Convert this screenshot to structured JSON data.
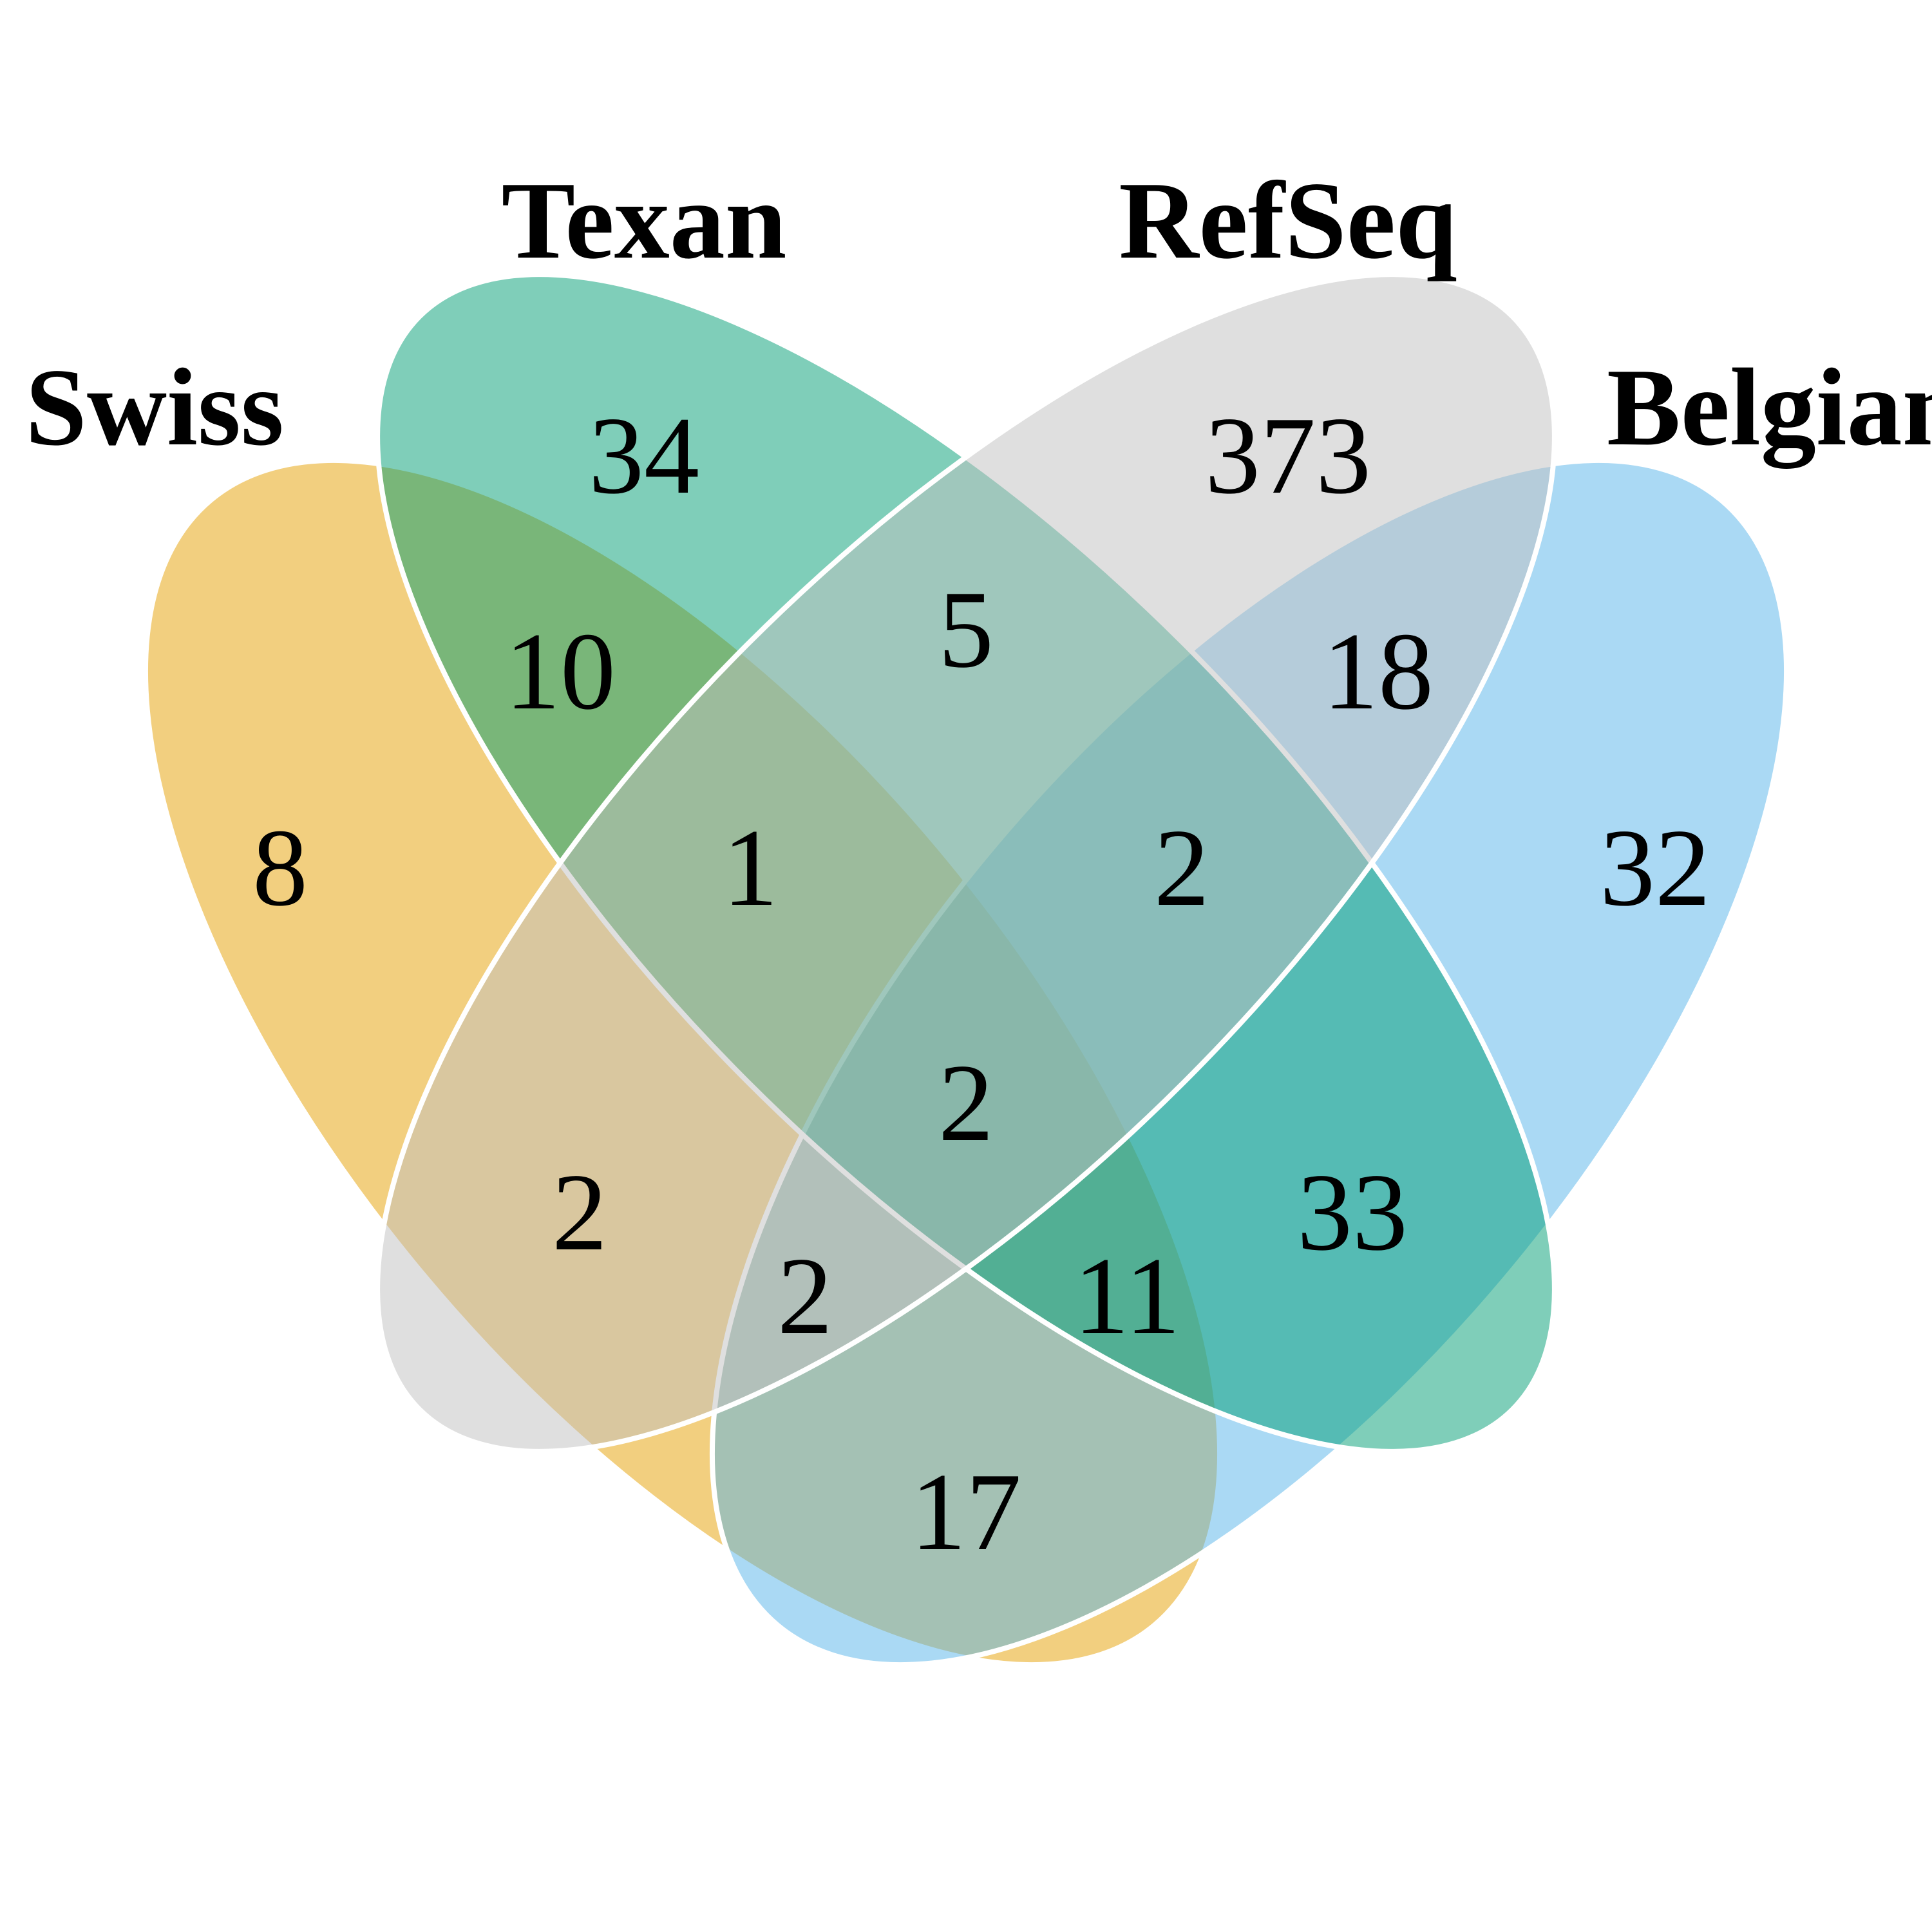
{
  "sets": {
    "swiss": {
      "label": "Swiss",
      "color": "#E69F00"
    },
    "texan": {
      "label": "Texan",
      "color": "#009E73"
    },
    "refseq": {
      "label": "RefSeq",
      "color": "#C0C0C0"
    },
    "belgian": {
      "label": "Belgian",
      "color": "#56B4E9"
    }
  },
  "regions": {
    "swiss_only": "8",
    "texan_only": "34",
    "refseq_only": "373",
    "belgian_only": "32",
    "swiss_texan": "10",
    "texan_refseq": "5",
    "refseq_belgian": "18",
    "swiss_refseq": "2",
    "texan_belgian": "33",
    "swiss_belgian": "17",
    "swiss_texan_refseq": "1",
    "texan_refseq_belgian": "2",
    "swiss_refseq_belgian": "2",
    "swiss_texan_belgian": "11",
    "all_four": "2"
  }
}
